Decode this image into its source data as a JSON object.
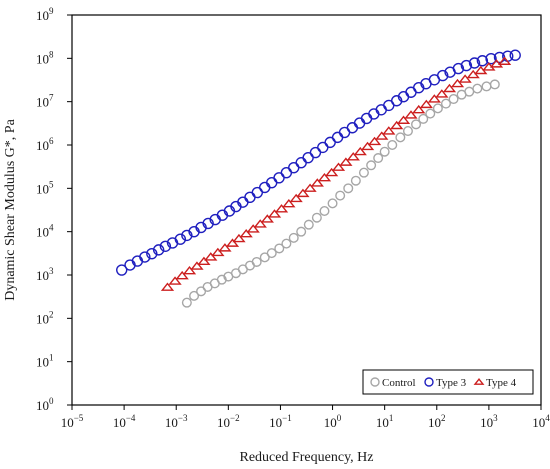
{
  "chart_data": {
    "type": "scatter",
    "xlabel": "Reduced Frequency, Hz",
    "ylabel": "Dynamic Shear Modulus G*, Pa",
    "x_scale": "log",
    "y_scale": "log",
    "xlim": [
      1e-05,
      10000.0
    ],
    "ylim": [
      1,
      1000000000.0
    ],
    "x_tick_labels": [
      {
        "base": "10",
        "exp": "−5"
      },
      {
        "base": "10",
        "exp": "−4"
      },
      {
        "base": "10",
        "exp": "−3"
      },
      {
        "base": "10",
        "exp": "−2"
      },
      {
        "base": "10",
        "exp": "−1"
      },
      {
        "base": "10",
        "exp": "0"
      },
      {
        "base": "10",
        "exp": "1"
      },
      {
        "base": "10",
        "exp": "2"
      },
      {
        "base": "10",
        "exp": "3"
      },
      {
        "base": "10",
        "exp": "4"
      }
    ],
    "y_tick_labels": [
      {
        "base": "10",
        "exp": "0"
      },
      {
        "base": "10",
        "exp": "1"
      },
      {
        "base": "10",
        "exp": "2"
      },
      {
        "base": "10",
        "exp": "3"
      },
      {
        "base": "10",
        "exp": "4"
      },
      {
        "base": "10",
        "exp": "5"
      },
      {
        "base": "10",
        "exp": "6"
      },
      {
        "base": "10",
        "exp": "7"
      },
      {
        "base": "10",
        "exp": "8"
      },
      {
        "base": "10",
        "exp": "9"
      }
    ],
    "grid": false,
    "legend_position": "bottom-right",
    "series": [
      {
        "name": "Control",
        "marker": "circle",
        "color": "#a6a6a6",
        "points": [
          [
            0.0016,
            230
          ],
          [
            0.0022,
            330
          ],
          [
            0.003,
            420
          ],
          [
            0.004,
            530
          ],
          [
            0.0055,
            640
          ],
          [
            0.0075,
            780
          ],
          [
            0.01,
            920
          ],
          [
            0.014,
            1100
          ],
          [
            0.019,
            1350
          ],
          [
            0.026,
            1650
          ],
          [
            0.035,
            2000
          ],
          [
            0.05,
            2550
          ],
          [
            0.068,
            3200
          ],
          [
            0.095,
            4100
          ],
          [
            0.13,
            5300
          ],
          [
            0.18,
            7200
          ],
          [
            0.25,
            10000
          ],
          [
            0.35,
            14500
          ],
          [
            0.5,
            21000
          ],
          [
            0.7,
            30000
          ],
          [
            1.0,
            45000
          ],
          [
            1.4,
            68000
          ],
          [
            2.0,
            100000
          ],
          [
            2.8,
            150000
          ],
          [
            4.0,
            230000
          ],
          [
            5.5,
            340000
          ],
          [
            7.5,
            500000
          ],
          [
            10,
            700000
          ],
          [
            14,
            1000000
          ],
          [
            20,
            1500000
          ],
          [
            28,
            2100000
          ],
          [
            40,
            3000000
          ],
          [
            55,
            4000000
          ],
          [
            75,
            5300000
          ],
          [
            105,
            7000000
          ],
          [
            150,
            9000000
          ],
          [
            210,
            11500000
          ],
          [
            300,
            14500000
          ],
          [
            420,
            17000000
          ],
          [
            600,
            20000000
          ],
          [
            900,
            22500000
          ],
          [
            1300,
            25000000
          ]
        ]
      },
      {
        "name": "Type 3",
        "marker": "circle",
        "color": "#1f1fbf",
        "points": [
          [
            9e-05,
            1300
          ],
          [
            0.00013,
            1700
          ],
          [
            0.00018,
            2100
          ],
          [
            0.00025,
            2600
          ],
          [
            0.00034,
            3100
          ],
          [
            0.00046,
            3800
          ],
          [
            0.00062,
            4600
          ],
          [
            0.00085,
            5500
          ],
          [
            0.0012,
            6700
          ],
          [
            0.0016,
            8200
          ],
          [
            0.0022,
            10000
          ],
          [
            0.003,
            12500
          ],
          [
            0.0041,
            15500
          ],
          [
            0.0056,
            19000
          ],
          [
            0.0077,
            24000
          ],
          [
            0.0105,
            30000
          ],
          [
            0.014,
            38000
          ],
          [
            0.019,
            48000
          ],
          [
            0.026,
            62000
          ],
          [
            0.036,
            80000
          ],
          [
            0.05,
            105000
          ],
          [
            0.068,
            135000
          ],
          [
            0.094,
            175000
          ],
          [
            0.13,
            230000
          ],
          [
            0.18,
            300000
          ],
          [
            0.25,
            390000
          ],
          [
            0.34,
            510000
          ],
          [
            0.47,
            670000
          ],
          [
            0.65,
            880000
          ],
          [
            0.9,
            1150000
          ],
          [
            1.25,
            1500000
          ],
          [
            1.7,
            1950000
          ],
          [
            2.4,
            2500000
          ],
          [
            3.3,
            3200000
          ],
          [
            4.5,
            4100000
          ],
          [
            6.2,
            5200000
          ],
          [
            8.6,
            6500000
          ],
          [
            12,
            8200000
          ],
          [
            17,
            10500000
          ],
          [
            23,
            13000000
          ],
          [
            32,
            16500000
          ],
          [
            45,
            21000000
          ],
          [
            62,
            26000000
          ],
          [
            90,
            32000000
          ],
          [
            130,
            40000000
          ],
          [
            180,
            48000000
          ],
          [
            260,
            58000000
          ],
          [
            370,
            68000000
          ],
          [
            530,
            78000000
          ],
          [
            750,
            88000000
          ],
          [
            1100,
            98000000
          ],
          [
            1600,
            105000000
          ],
          [
            2300,
            112000000
          ],
          [
            3200,
            118000000
          ]
        ]
      },
      {
        "name": "Type 4",
        "marker": "triangle",
        "color": "#cc1f1f",
        "points": [
          [
            0.00068,
            520
          ],
          [
            0.00095,
            720
          ],
          [
            0.0013,
            960
          ],
          [
            0.0018,
            1250
          ],
          [
            0.0025,
            1600
          ],
          [
            0.0034,
            2050
          ],
          [
            0.0046,
            2600
          ],
          [
            0.0063,
            3300
          ],
          [
            0.0086,
            4200
          ],
          [
            0.012,
            5400
          ],
          [
            0.016,
            6900
          ],
          [
            0.022,
            8900
          ],
          [
            0.03,
            11500
          ],
          [
            0.041,
            15000
          ],
          [
            0.056,
            19500
          ],
          [
            0.077,
            25500
          ],
          [
            0.105,
            33500
          ],
          [
            0.145,
            44000
          ],
          [
            0.2,
            58000
          ],
          [
            0.27,
            76000
          ],
          [
            0.37,
            100000
          ],
          [
            0.51,
            132000
          ],
          [
            0.7,
            175000
          ],
          [
            0.96,
            230000
          ],
          [
            1.3,
            305000
          ],
          [
            1.8,
            400000
          ],
          [
            2.5,
            530000
          ],
          [
            3.4,
            700000
          ],
          [
            4.7,
            920000
          ],
          [
            6.4,
            1200000
          ],
          [
            8.8,
            1600000
          ],
          [
            12,
            2100000
          ],
          [
            17,
            2800000
          ],
          [
            23,
            3700000
          ],
          [
            32,
            4900000
          ],
          [
            45,
            6500000
          ],
          [
            63,
            8600000
          ],
          [
            90,
            11500000
          ],
          [
            125,
            15000000
          ],
          [
            175,
            20000000
          ],
          [
            250,
            26000000
          ],
          [
            350,
            33000000
          ],
          [
            500,
            42000000
          ],
          [
            700,
            52000000
          ],
          [
            1000,
            63000000
          ],
          [
            1400,
            74000000
          ],
          [
            2000,
            85000000
          ]
        ]
      }
    ]
  }
}
